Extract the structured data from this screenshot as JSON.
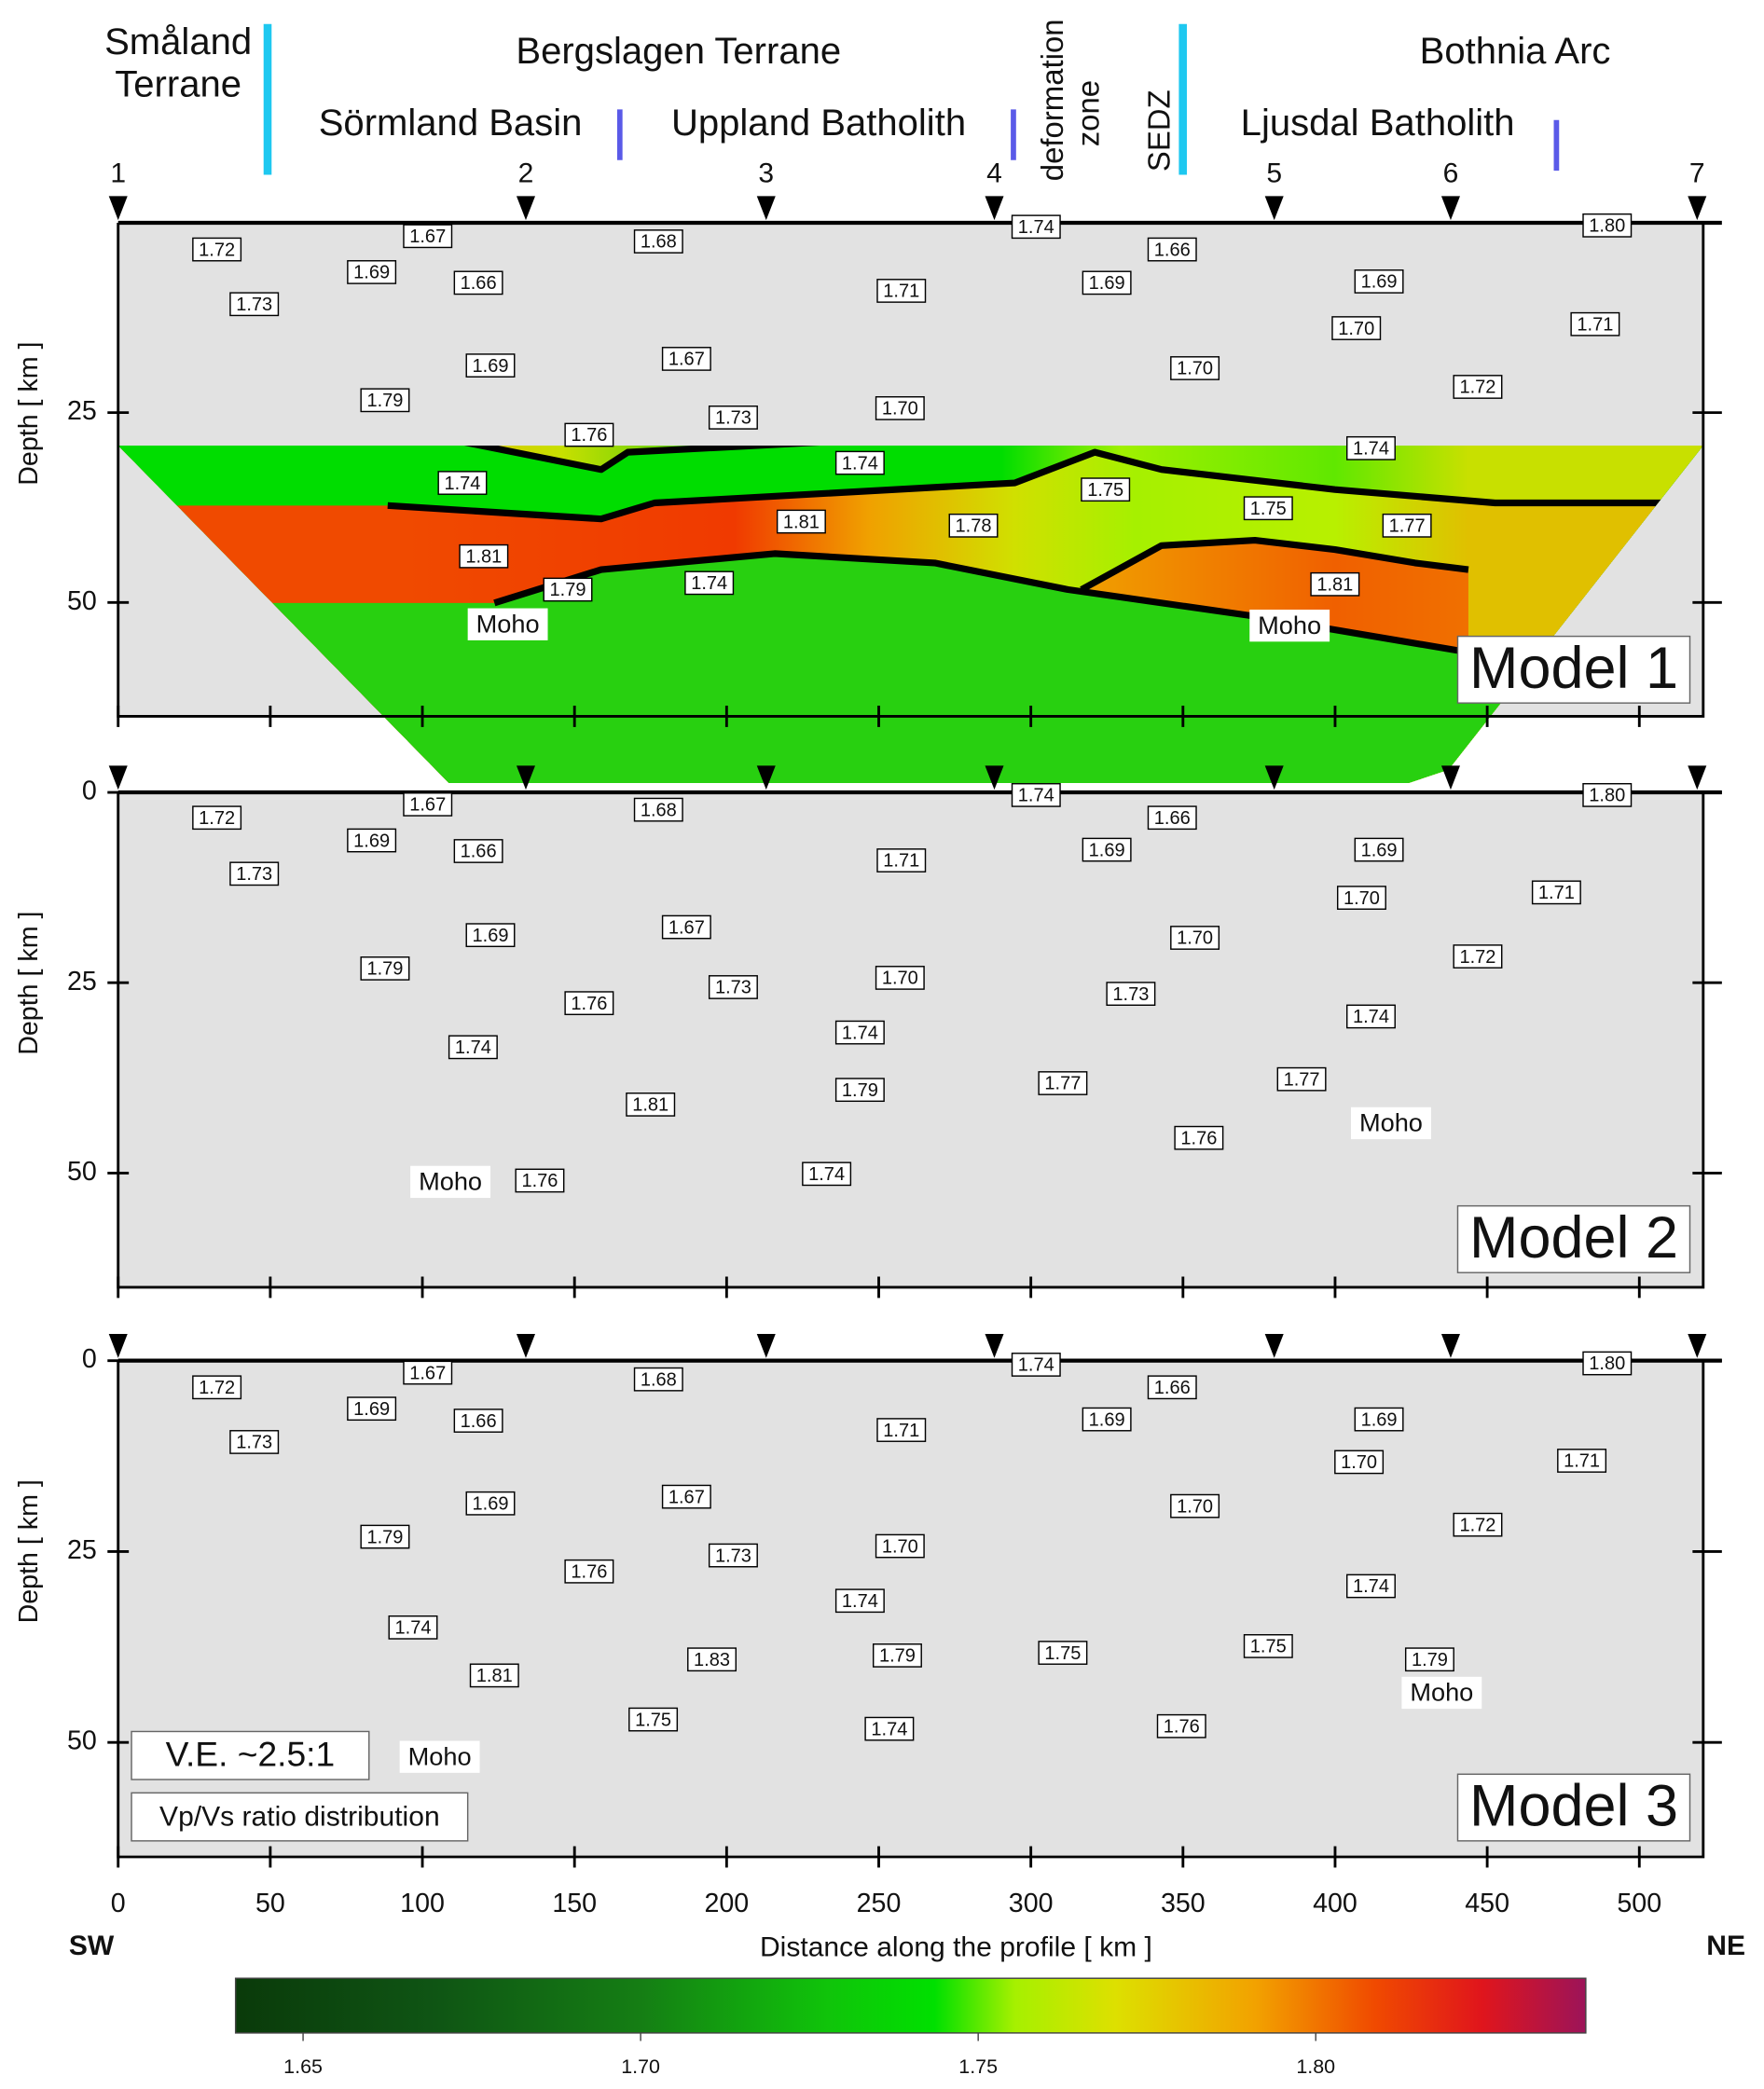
{
  "header": {
    "smaland": [
      "Småland",
      "Terrane"
    ],
    "bergslagen": "Bergslagen Terrane",
    "sormland": "Sörmland Basin",
    "uppland": "Uppland Batholith",
    "deformation_zone": [
      "deformation",
      "zone"
    ],
    "sedz": "SEDZ",
    "bothnia": "Bothnia Arc",
    "ljusdal": "Ljusdal Batholith"
  },
  "stations": {
    "names": [
      "1",
      "2",
      "3",
      "4",
      "5",
      "6",
      "7"
    ],
    "x": [
      0,
      134,
      213,
      288,
      380,
      438,
      519
    ]
  },
  "axes": {
    "xlabel": "Distance along the profile [ km ]",
    "ylabel": "Depth [ km ]",
    "xlim": [
      0,
      521
    ],
    "xticks": [
      0,
      50,
      100,
      150,
      200,
      250,
      300,
      350,
      400,
      450,
      500
    ],
    "sw": "SW",
    "ne": "NE"
  },
  "models": [
    {
      "title": "Model 1",
      "ylim": [
        0,
        65
      ],
      "yticks": [
        25,
        50
      ],
      "labels": [
        "1.72",
        "1.67",
        "1.68",
        "1.74",
        "1.66",
        "1.80",
        "1.69",
        "1.66",
        "1.71",
        "1.69",
        "1.69",
        "1.73",
        "1.70",
        "1.71",
        "1.69",
        "1.67",
        "1.70",
        "1.72",
        "1.79",
        "1.73",
        "1.70",
        "1.76",
        "1.74",
        "1.74",
        "1.74",
        "1.75",
        "1.75",
        "1.81",
        "1.78",
        "1.77",
        "1.81",
        "1.79",
        "1.74",
        "1.81"
      ],
      "moho": [
        "Moho",
        "Moho"
      ]
    },
    {
      "title": "Model 2",
      "ylim": [
        0,
        65
      ],
      "yticks": [
        0,
        25,
        50
      ],
      "labels": [
        "1.72",
        "1.67",
        "1.68",
        "1.74",
        "1.66",
        "1.80",
        "1.69",
        "1.66",
        "1.71",
        "1.69",
        "1.69",
        "1.73",
        "1.70",
        "1.71",
        "1.69",
        "1.67",
        "1.70",
        "1.72",
        "1.79",
        "1.73",
        "1.70",
        "1.76",
        "1.73",
        "1.74",
        "1.74",
        "1.74",
        "1.81",
        "1.79",
        "1.77",
        "1.77",
        "1.76",
        "1.76",
        "1.74"
      ],
      "moho": [
        "Moho",
        "Moho"
      ]
    },
    {
      "title": "Model 3",
      "ylim": [
        0,
        65
      ],
      "yticks": [
        0,
        25,
        50
      ],
      "labels": [
        "1.72",
        "1.67",
        "1.68",
        "1.74",
        "1.66",
        "1.80",
        "1.69",
        "1.66",
        "1.71",
        "1.69",
        "1.69",
        "1.73",
        "1.70",
        "1.71",
        "1.69",
        "1.67",
        "1.70",
        "1.72",
        "1.79",
        "1.73",
        "1.70",
        "1.76",
        "1.74",
        "1.74",
        "1.74",
        "1.75",
        "1.81",
        "1.83",
        "1.79",
        "1.75",
        "1.79",
        "1.75",
        "1.74",
        "1.76"
      ],
      "moho": [
        "Moho",
        "Moho"
      ]
    }
  ],
  "notes": {
    "ve": "V.E. ~2.5:1",
    "legend": "Vp/Vs ratio distribution"
  },
  "colorbar": {
    "clim": [
      1.64,
      1.84
    ],
    "ticks": [
      {
        "value": 1.65,
        "label": "1.65"
      },
      {
        "value": 1.7,
        "label": "1.70"
      },
      {
        "value": 1.75,
        "label": "1.75"
      },
      {
        "value": 1.8,
        "label": "1.80"
      }
    ]
  }
}
